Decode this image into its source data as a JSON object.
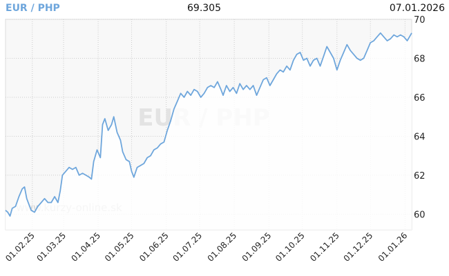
{
  "header": {
    "pair": "EUR / PHP",
    "last_value": "69.305",
    "last_date": "07.01.2026"
  },
  "watermark": {
    "pair": "EUR / PHP",
    "site": "www.kurzy-online.sk"
  },
  "colors": {
    "line": "#6ea6dc",
    "title": "#6ea6dc",
    "grid": "#cccccc",
    "plot_bg": "#f8f8f8"
  },
  "chart_data": {
    "type": "line",
    "title": "EUR / PHP",
    "xlabel": "",
    "ylabel": "",
    "ylim": [
      59.2,
      70
    ],
    "yticks": [
      60,
      62,
      64,
      66,
      68,
      70
    ],
    "xtick_labels": [
      "01.02.25",
      "01.03.25",
      "01.04.25",
      "01.05.25",
      "01.06.25",
      "01.07.25",
      "01.08.25",
      "01.09.25",
      "01.10.25",
      "01.11.25",
      "01.12.25",
      "01.01.26"
    ],
    "xlim": [
      "2025-01-08",
      "2026-01-07"
    ],
    "grid": true,
    "series": [
      {
        "name": "",
        "points": [
          [
            "2025-01-08",
            60.2
          ],
          [
            "2025-01-10",
            60.1
          ],
          [
            "2025-01-12",
            59.9
          ],
          [
            "2025-01-14",
            60.3
          ],
          [
            "2025-01-17",
            60.4
          ],
          [
            "2025-01-20",
            60.9
          ],
          [
            "2025-01-23",
            61.3
          ],
          [
            "2025-01-25",
            61.4
          ],
          [
            "2025-01-27",
            60.8
          ],
          [
            "2025-01-29",
            60.5
          ],
          [
            "2025-01-31",
            60.2
          ],
          [
            "2025-02-03",
            60.1
          ],
          [
            "2025-02-06",
            60.4
          ],
          [
            "2025-02-09",
            60.6
          ],
          [
            "2025-02-12",
            60.8
          ],
          [
            "2025-02-15",
            60.6
          ],
          [
            "2025-02-18",
            60.6
          ],
          [
            "2025-02-21",
            60.9
          ],
          [
            "2025-02-24",
            60.6
          ],
          [
            "2025-02-26",
            61.2
          ],
          [
            "2025-02-28",
            62.0
          ],
          [
            "2025-03-03",
            62.2
          ],
          [
            "2025-03-06",
            62.4
          ],
          [
            "2025-03-09",
            62.3
          ],
          [
            "2025-03-12",
            62.4
          ],
          [
            "2025-03-15",
            62.0
          ],
          [
            "2025-03-18",
            62.1
          ],
          [
            "2025-03-21",
            62.0
          ],
          [
            "2025-03-24",
            61.9
          ],
          [
            "2025-03-26",
            61.8
          ],
          [
            "2025-03-28",
            62.7
          ],
          [
            "2025-03-31",
            63.3
          ],
          [
            "2025-04-03",
            62.9
          ],
          [
            "2025-04-05",
            64.6
          ],
          [
            "2025-04-07",
            64.9
          ],
          [
            "2025-04-10",
            64.3
          ],
          [
            "2025-04-13",
            64.6
          ],
          [
            "2025-04-15",
            65.0
          ],
          [
            "2025-04-18",
            64.2
          ],
          [
            "2025-04-21",
            63.8
          ],
          [
            "2025-04-23",
            63.2
          ],
          [
            "2025-04-26",
            62.8
          ],
          [
            "2025-04-29",
            62.7
          ],
          [
            "2025-05-01",
            62.2
          ],
          [
            "2025-05-03",
            61.9
          ],
          [
            "2025-05-06",
            62.4
          ],
          [
            "2025-05-09",
            62.5
          ],
          [
            "2025-05-12",
            62.6
          ],
          [
            "2025-05-15",
            62.9
          ],
          [
            "2025-05-18",
            63.0
          ],
          [
            "2025-05-21",
            63.3
          ],
          [
            "2025-05-24",
            63.4
          ],
          [
            "2025-05-27",
            63.6
          ],
          [
            "2025-05-30",
            63.7
          ],
          [
            "2025-06-02",
            64.3
          ],
          [
            "2025-06-05",
            64.8
          ],
          [
            "2025-06-08",
            65.4
          ],
          [
            "2025-06-11",
            65.8
          ],
          [
            "2025-06-14",
            66.2
          ],
          [
            "2025-06-17",
            66.0
          ],
          [
            "2025-06-20",
            66.3
          ],
          [
            "2025-06-23",
            66.1
          ],
          [
            "2025-06-26",
            66.4
          ],
          [
            "2025-06-29",
            66.3
          ],
          [
            "2025-07-02",
            66.0
          ],
          [
            "2025-07-05",
            66.2
          ],
          [
            "2025-07-08",
            66.5
          ],
          [
            "2025-07-11",
            66.6
          ],
          [
            "2025-07-14",
            66.5
          ],
          [
            "2025-07-17",
            66.8
          ],
          [
            "2025-07-20",
            66.4
          ],
          [
            "2025-07-22",
            66.1
          ],
          [
            "2025-07-25",
            66.6
          ],
          [
            "2025-07-28",
            66.3
          ],
          [
            "2025-07-31",
            66.5
          ],
          [
            "2025-08-03",
            66.2
          ],
          [
            "2025-08-06",
            66.7
          ],
          [
            "2025-08-09",
            66.4
          ],
          [
            "2025-08-12",
            66.6
          ],
          [
            "2025-08-15",
            66.4
          ],
          [
            "2025-08-18",
            66.6
          ],
          [
            "2025-08-21",
            66.1
          ],
          [
            "2025-08-24",
            66.5
          ],
          [
            "2025-08-27",
            66.9
          ],
          [
            "2025-08-30",
            67.0
          ],
          [
            "2025-09-02",
            66.6
          ],
          [
            "2025-09-05",
            66.9
          ],
          [
            "2025-09-08",
            67.2
          ],
          [
            "2025-09-11",
            67.4
          ],
          [
            "2025-09-14",
            67.3
          ],
          [
            "2025-09-17",
            67.6
          ],
          [
            "2025-09-20",
            67.4
          ],
          [
            "2025-09-23",
            67.9
          ],
          [
            "2025-09-26",
            68.2
          ],
          [
            "2025-09-29",
            68.3
          ],
          [
            "2025-10-02",
            67.9
          ],
          [
            "2025-10-05",
            68.0
          ],
          [
            "2025-10-08",
            67.6
          ],
          [
            "2025-10-11",
            67.9
          ],
          [
            "2025-10-14",
            68.0
          ],
          [
            "2025-10-17",
            67.6
          ],
          [
            "2025-10-20",
            68.1
          ],
          [
            "2025-10-23",
            68.6
          ],
          [
            "2025-10-26",
            68.3
          ],
          [
            "2025-10-29",
            68.0
          ],
          [
            "2025-11-01",
            67.4
          ],
          [
            "2025-11-04",
            67.9
          ],
          [
            "2025-11-07",
            68.3
          ],
          [
            "2025-11-10",
            68.7
          ],
          [
            "2025-11-13",
            68.4
          ],
          [
            "2025-11-16",
            68.2
          ],
          [
            "2025-11-19",
            68.0
          ],
          [
            "2025-11-22",
            67.9
          ],
          [
            "2025-11-25",
            68.0
          ],
          [
            "2025-11-28",
            68.4
          ],
          [
            "2025-12-01",
            68.8
          ],
          [
            "2025-12-04",
            68.9
          ],
          [
            "2025-12-07",
            69.1
          ],
          [
            "2025-12-10",
            69.3
          ],
          [
            "2025-12-13",
            69.1
          ],
          [
            "2025-12-16",
            68.9
          ],
          [
            "2025-12-19",
            69.0
          ],
          [
            "2025-12-22",
            69.2
          ],
          [
            "2025-12-25",
            69.1
          ],
          [
            "2025-12-28",
            69.2
          ],
          [
            "2025-12-31",
            69.1
          ],
          [
            "2026-01-03",
            68.9
          ],
          [
            "2026-01-05",
            69.1
          ],
          [
            "2026-01-07",
            69.3
          ]
        ]
      }
    ]
  }
}
